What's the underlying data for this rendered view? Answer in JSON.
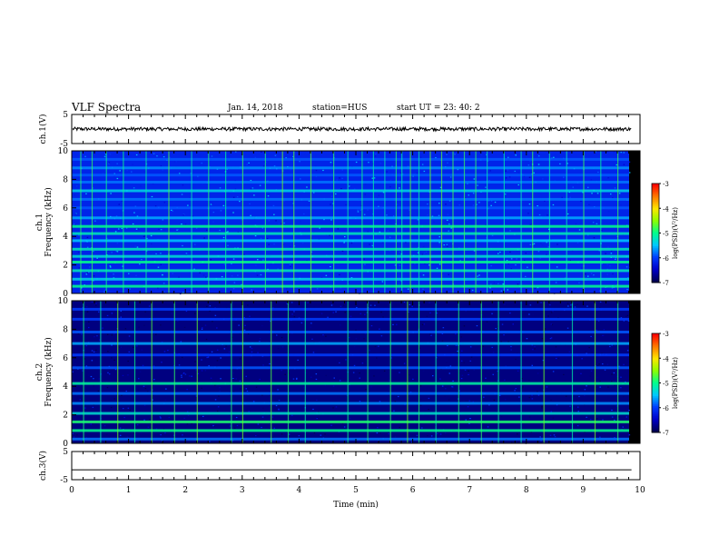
{
  "header": {
    "title": "VLF Spectra",
    "date": "Jan. 14, 2018",
    "station": "station=HUS",
    "start_ut": "start  UT =  23: 40: 2"
  },
  "colorbar": {
    "label": "log(PSD)(V²/Hz)",
    "ticks": [
      -3,
      -4,
      -5,
      -6,
      -7
    ],
    "colors": [
      "#ff0000",
      "#ff8000",
      "#ffff00",
      "#00ff00",
      "#00ffff",
      "#0040ff",
      "#000060"
    ]
  },
  "chart_data": [
    {
      "type": "line",
      "panel": "ch1-voltage",
      "ylabel": "ch.1(V)",
      "ylim": [
        -5,
        5
      ],
      "y_ticks": [
        5,
        -5
      ],
      "x": [
        0,
        1,
        2,
        3,
        4,
        5,
        6,
        7,
        8,
        9,
        9.85
      ],
      "y": [
        0,
        0,
        0,
        0,
        0,
        0,
        0,
        0,
        0,
        0,
        0
      ],
      "noise_amplitude": 0.6
    },
    {
      "type": "heatmap",
      "panel": "ch1-spectrogram",
      "ylabel": "ch.1 Frequency (kHz)",
      "ylim": [
        0,
        10
      ],
      "y_ticks": [
        0,
        2,
        4,
        6,
        8,
        10
      ],
      "background_level": -6.2,
      "band_freqs_khz": [
        0.5,
        1.0,
        1.6,
        2.2,
        2.6,
        3.1,
        3.7,
        4.2,
        4.7,
        5.3,
        6.0,
        6.6,
        7.2,
        7.8,
        8.3,
        8.8,
        9.4
      ],
      "band_levels": [
        -5.0,
        -5.4,
        -5.2,
        -5.0,
        -5.3,
        -5.2,
        -5.5,
        -5.2,
        -5.0,
        -5.6,
        -5.9,
        -5.8,
        -5.4,
        -5.8,
        -5.9,
        -5.7,
        -5.9
      ],
      "sferic_times_min": [
        0.15,
        0.35,
        0.6,
        0.9,
        1.3,
        1.7,
        2.1,
        2.4,
        2.7,
        3.0,
        3.4,
        3.7,
        3.9,
        4.2,
        4.6,
        4.85,
        5.1,
        5.3,
        5.5,
        5.7,
        5.8,
        5.95,
        6.1,
        6.3,
        6.5,
        6.7,
        6.9,
        7.1,
        7.3,
        7.6,
        7.9,
        8.1,
        8.4,
        8.7,
        9.0,
        9.3,
        9.6
      ]
    },
    {
      "type": "heatmap",
      "panel": "ch2-spectrogram",
      "ylabel": "ch.2 Frequency (kHz)",
      "ylim": [
        0,
        10
      ],
      "y_ticks": [
        0,
        2,
        4,
        6,
        8,
        10
      ],
      "background_level": -6.8,
      "band_freqs_khz": [
        0.3,
        0.9,
        1.5,
        2.1,
        2.8,
        3.5,
        4.2,
        5.3,
        6.2,
        7.0,
        7.8,
        8.7,
        9.4
      ],
      "band_levels": [
        -5.8,
        -5.0,
        -4.9,
        -5.3,
        -5.7,
        -5.8,
        -5.1,
        -5.9,
        -6.0,
        -5.6,
        -5.9,
        -6.0,
        -6.0
      ],
      "sferic_times_min": [
        0.2,
        0.5,
        0.8,
        1.1,
        1.4,
        1.8,
        2.2,
        2.8,
        3.0,
        3.5,
        3.8,
        4.1,
        4.85,
        5.2,
        5.6,
        5.9,
        6.1,
        6.4,
        6.8,
        7.2,
        7.5,
        7.9,
        8.3,
        8.8,
        9.2,
        9.6
      ]
    },
    {
      "type": "line",
      "panel": "ch3-voltage",
      "ylabel": "ch.3(V)",
      "ylim": [
        -5,
        5
      ],
      "y_ticks": [
        5,
        -5
      ],
      "x": [
        0,
        9.85
      ],
      "y": [
        -1.5,
        -1.5
      ]
    }
  ],
  "x_axis": {
    "label": "Time (min)",
    "xlim": [
      0,
      10
    ],
    "ticks": [
      0,
      1,
      2,
      3,
      4,
      5,
      6,
      7,
      8,
      9,
      10
    ]
  }
}
